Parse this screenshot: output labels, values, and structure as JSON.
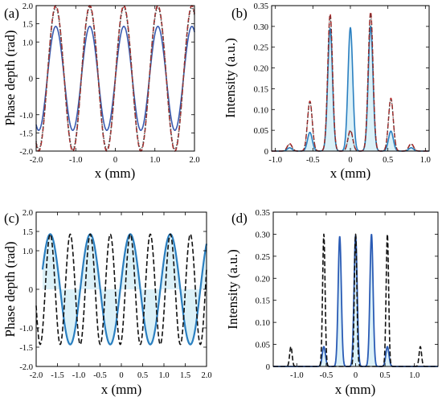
{
  "chart_data": [
    {
      "panel": "(a)",
      "type": "line",
      "xlabel": "x (mm)",
      "ylabel": "Phase depth (rad)",
      "xlim": [
        -2.0,
        2.0
      ],
      "ylim": [
        -2.0,
        2.0
      ],
      "xticks": [
        -2.0,
        -1.0,
        0,
        1.0,
        2.0
      ],
      "xtick_labels": [
        "-2.0",
        "-1.0",
        "0",
        "1.0",
        "2.0"
      ],
      "yticks": [
        -2.0,
        -1.5,
        -1.0,
        0,
        1.0,
        1.5,
        2.0
      ],
      "ytick_labels": [
        "-2.0",
        "-1.5",
        "-1.0",
        "0",
        "1.0",
        "1.5",
        "2.0"
      ],
      "grid": false,
      "series": [
        {
          "style": "solid",
          "color": "#3a5bb0",
          "function": "sine",
          "amplitude": 1.43,
          "period": 0.86,
          "x_of_max": 0.215,
          "x": [
            -2.0,
            2.0
          ]
        },
        {
          "style": "dashed",
          "color": "#b22222",
          "function": "sine",
          "amplitude": 2.0,
          "period": 0.86,
          "x_of_max": 0.215,
          "x": [
            -2.0,
            2.0
          ]
        },
        {
          "style": "dotted",
          "color": "#555555",
          "function": "sine",
          "amplitude": 1.95,
          "period": 0.86,
          "x_of_max": 0.215,
          "x": [
            -2.0,
            2.0
          ]
        }
      ],
      "letter_color": "#000000"
    },
    {
      "panel": "(b)",
      "type": "line",
      "xlabel": "x (mm)",
      "ylabel": "Intensity (a.u.)",
      "xlim": [
        -1.05,
        1.05
      ],
      "ylim": [
        0,
        0.35
      ],
      "xticks": [
        -1.0,
        -0.5,
        0,
        0.5,
        1.0
      ],
      "xtick_labels": [
        "-1.0",
        "-0.5",
        "0",
        "0.5",
        "1.0"
      ],
      "yticks": [
        0,
        0.05,
        0.1,
        0.15,
        0.2,
        0.25,
        0.3,
        0.35
      ],
      "ytick_labels": [
        "0",
        "0.05",
        "0.10",
        "0.15",
        "0.20",
        "0.25",
        "0.30",
        "0.35"
      ],
      "grid": false,
      "peak_width": 0.045,
      "series": [
        {
          "style": "solid",
          "color": "#2a7fc0",
          "fill": "#d6eef7",
          "width": 1.6,
          "peaks": [
            [
              -0.81,
              0.008
            ],
            [
              -0.54,
              0.045
            ],
            [
              -0.27,
              0.295
            ],
            [
              0.0,
              0.297
            ],
            [
              0.27,
              0.3
            ],
            [
              0.54,
              0.048
            ],
            [
              0.81,
              0.008
            ]
          ]
        },
        {
          "style": "dashed",
          "color": "#b22222",
          "width": 1.5,
          "peaks": [
            [
              -0.81,
              0.018
            ],
            [
              -0.54,
              0.12
            ],
            [
              -0.27,
              0.33
            ],
            [
              0.0,
              0.05
            ],
            [
              0.27,
              0.335
            ],
            [
              0.54,
              0.127
            ],
            [
              0.81,
              0.018
            ]
          ]
        },
        {
          "style": "dotted",
          "color": "#444444",
          "width": 1.1,
          "peaks": [
            [
              -0.81,
              0.016
            ],
            [
              -0.54,
              0.118
            ],
            [
              -0.27,
              0.325
            ],
            [
              0.0,
              0.048
            ],
            [
              0.27,
              0.33
            ],
            [
              0.54,
              0.125
            ],
            [
              0.81,
              0.016
            ]
          ]
        }
      ],
      "letter_color": "#000000"
    },
    {
      "panel": "(c)",
      "type": "line",
      "xlabel": "x (mm)",
      "ylabel": "Phase depth (rad)",
      "xlim": [
        -2.0,
        2.0
      ],
      "ylim": [
        -2.0,
        2.0
      ],
      "xticks": [
        -2.0,
        -1.5,
        -1.0,
        -0.5,
        0,
        0.5,
        1.0,
        1.5,
        2.0
      ],
      "xtick_labels": [
        "-2.0",
        "-1.5",
        "-1.0",
        "-0.5",
        "0",
        "0.5",
        "1.0",
        "1.5",
        "2.0"
      ],
      "yticks": [
        -2.0,
        -1.5,
        -1.0,
        0,
        1.0,
        1.5,
        2.0
      ],
      "ytick_labels": [
        "-2.0",
        "-1.5",
        "-1.0",
        "0",
        "1.0",
        "1.5",
        "2.0"
      ],
      "grid": false,
      "series": [
        {
          "style": "solid",
          "color": "#2a7fc0",
          "fill": "#d6eef7",
          "width": 2.2,
          "function": "sine",
          "amplitude": 1.43,
          "period": 0.94,
          "x_of_max": 0.21,
          "x": [
            -1.85,
            2.0
          ]
        },
        {
          "style": "dashed",
          "color": "#111111",
          "width": 1.6,
          "function": "sine",
          "amplitude": 1.43,
          "period": 0.47,
          "x_of_max": -0.26,
          "x": [
            -2.0,
            2.0
          ]
        }
      ],
      "letter_color": "#000000"
    },
    {
      "panel": "(d)",
      "type": "line",
      "xlabel": "x (mm)",
      "ylabel": "Intensity (a.u.)",
      "xlim": [
        -1.4,
        1.4
      ],
      "ylim": [
        0,
        0.35
      ],
      "xticks": [
        -1.0,
        -0.5,
        0,
        0.5,
        1.0
      ],
      "xtick_labels": [
        "-1.0",
        "-0.5",
        "0",
        "0.5",
        "1.0"
      ],
      "yticks": [
        0,
        0.05,
        0.1,
        0.15,
        0.2,
        0.25,
        0.3,
        0.35
      ],
      "ytick_labels": [
        "0",
        "0.05",
        "0.10",
        "0.15",
        "0.20",
        "0.25",
        "0.30",
        "0.35"
      ],
      "grid": false,
      "series": [
        {
          "style": "solid",
          "color": "#2a5bb5",
          "fill": "#d6eef7",
          "width": 1.8,
          "peak_width": 0.038,
          "peaks": [
            [
              -0.54,
              0.045
            ],
            [
              -0.27,
              0.295
            ],
            [
              0.0,
              0.297
            ],
            [
              0.27,
              0.3
            ],
            [
              0.54,
              0.045
            ]
          ]
        },
        {
          "style": "dashed",
          "color": "#111111",
          "width": 1.6,
          "peak_width": 0.03,
          "peaks": [
            [
              -1.1,
              0.045
            ],
            [
              -0.54,
              0.3
            ],
            [
              0.0,
              0.3
            ],
            [
              0.54,
              0.3
            ],
            [
              1.1,
              0.045
            ]
          ]
        }
      ],
      "letter_color": "#000000"
    }
  ]
}
